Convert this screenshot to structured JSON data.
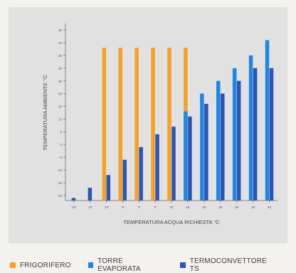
{
  "chart_data": {
    "type": "bar",
    "xlabel": "TEMPERATURA ACQUA RICHIESTA °C",
    "ylabel": "TEMPERATURA AMBIENTE °C",
    "categories": [
      "-20",
      "-15",
      "-10",
      "-5",
      "0",
      "5",
      "10",
      "15",
      "20",
      "25",
      "30",
      "35",
      "40"
    ],
    "y_ticks": [
      -20,
      -15,
      -10,
      -5,
      0,
      5,
      10,
      15,
      20,
      25,
      30,
      35,
      40,
      45
    ],
    "ylim": [
      -22,
      47
    ],
    "series": [
      {
        "name": "FRIGORIFERO",
        "color": "#f7a123",
        "values": [
          null,
          null,
          38,
          38,
          38,
          38,
          38,
          38,
          null,
          null,
          null,
          null,
          null
        ]
      },
      {
        "name": "TORRE EVAPORATA",
        "color": "#1f86e6",
        "values": [
          null,
          null,
          null,
          null,
          null,
          null,
          null,
          13,
          20,
          25,
          30,
          35,
          41
        ]
      },
      {
        "name": "TERMOCONVETTORE TS",
        "color": "#2c55b8",
        "values": [
          -21,
          -17,
          -12,
          -6,
          -1,
          4,
          7,
          11,
          16,
          20,
          25,
          30,
          30
        ]
      }
    ],
    "grid": false,
    "legend_position": "bottom"
  },
  "legend": {
    "items": [
      {
        "label": "FRIGORIFERO",
        "color": "#f7a123"
      },
      {
        "label": "TORRE EVAPORATA",
        "color": "#1f86e6"
      },
      {
        "label": "TERMOCONVETTORE TS",
        "color": "#2c55b8"
      }
    ]
  }
}
